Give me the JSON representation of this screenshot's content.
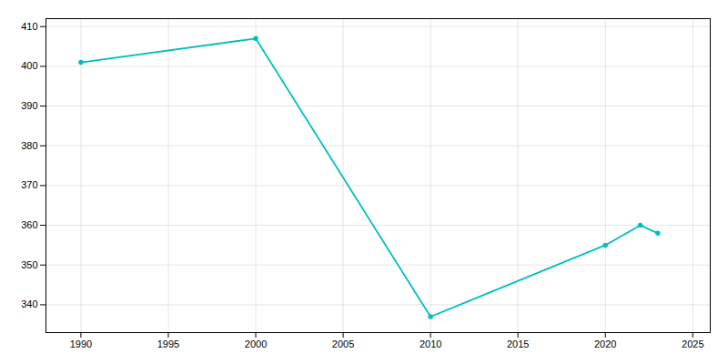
{
  "chart_data": {
    "type": "line",
    "x": [
      1990,
      2000,
      2010,
      2020,
      2022,
      2023
    ],
    "values": [
      401,
      407,
      337,
      355,
      360,
      358
    ],
    "color": "#00BFBF",
    "marker": "circle",
    "xlim": [
      1988,
      2026
    ],
    "ylim": [
      333,
      412
    ],
    "xticks": [
      1990,
      1995,
      2000,
      2005,
      2010,
      2015,
      2020,
      2025
    ],
    "yticks": [
      340,
      350,
      360,
      370,
      380,
      390,
      400,
      410
    ],
    "grid": true
  }
}
